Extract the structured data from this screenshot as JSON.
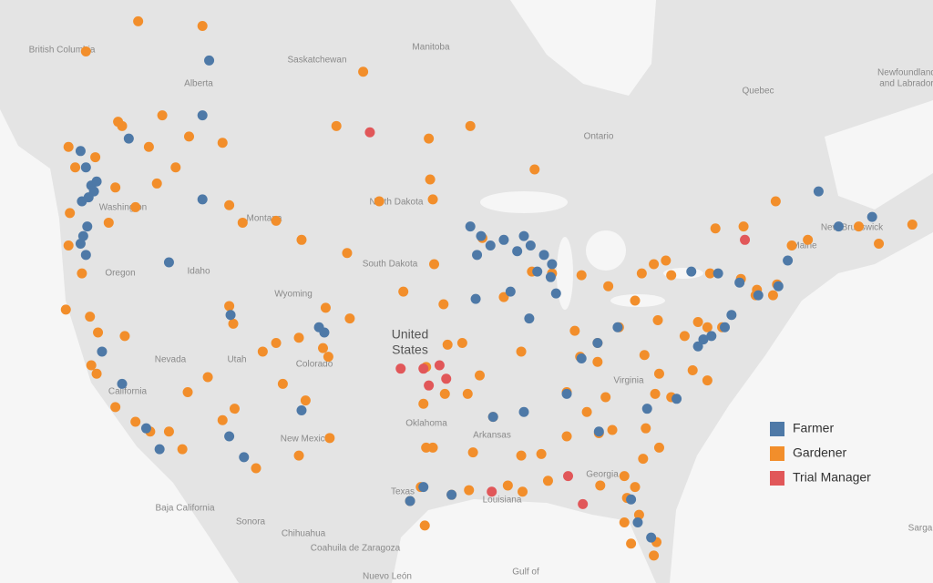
{
  "map": {
    "places": [
      "British Columbia",
      "Alberta",
      "Saskatchewan",
      "Manitoba",
      "Ontario",
      "Quebec",
      "Newfoundland",
      "and Labrador",
      "North Dakota",
      "South Dakota",
      "Montana",
      "Wyoming",
      "Idaho",
      "Washington",
      "Oregon",
      "Nevada",
      "Utah",
      "Colorado",
      "California",
      "New Mexico",
      "Texas",
      "Oklahoma",
      "Arkansas",
      "Louisiana",
      "Georgia",
      "Virginia",
      "Maine",
      "New Brunswick",
      "Baja California",
      "Sonora",
      "Chihuahua",
      "Coahuila de Zaragoza",
      "Nuevo León",
      "Gulf of",
      "Sarga"
    ],
    "country_label": [
      "United",
      "States"
    ],
    "series": [
      {
        "name": "Gardener",
        "color": "#f28e2b",
        "lon": [
          -124,
          -123.5,
          -122,
          -120,
          -118,
          -117,
          -115,
          -116,
          -117.4,
          -119,
          -120.5,
          -121,
          -123.9,
          -124,
          -123,
          -124.2,
          -122.4,
          -121.8,
          -122.3,
          -121.9,
          -120.5,
          -119,
          -117.9,
          -116.5,
          -115.5,
          -119.8,
          -115.1,
          -113.6,
          -111.7,
          -112,
          -109.5,
          -108.5,
          -106.8,
          -105,
          -104.6,
          -103,
          -106.3,
          -108,
          -104.5,
          -106.8,
          -111.6,
          -112.5,
          -110,
          -108.5,
          -111,
          -112,
          -106.6,
          -104.8,
          -103.2,
          -100.8,
          -97,
          -96.8,
          -96.7,
          -99,
          -96,
          -97.3,
          -95.7,
          -94.6,
          -97.5,
          -95.9,
          -97.3,
          -96.8,
          -97.7,
          -98.5,
          -95.4,
          -94.1,
          -97.4,
          -93.8,
          -91.2,
          -90.1,
          -88.2,
          -86.8,
          -88.7,
          -90.2,
          -92.3,
          -94.2,
          -90.2,
          -93.3,
          -91.5,
          -93.1,
          -89.4,
          -87.9,
          -86.2,
          -85.7,
          -83.7,
          -84.5,
          -82.9,
          -81.7,
          -80,
          -79,
          -76.1,
          -73.8,
          -72.7,
          -71.4,
          -71.1,
          -72.6,
          -75.2,
          -77,
          -76.3,
          -77.4,
          -76.3,
          -79.9,
          -80.2,
          -79,
          -80.9,
          -79.9,
          -81.1,
          -83.4,
          -84.4,
          -82.5,
          -81.7,
          -82.3,
          -81.4,
          -82.5,
          -82,
          -80.1,
          -80.3,
          -84.3,
          -86.8,
          -85.3,
          -83.9,
          -84.5,
          -85.8,
          -81,
          -78,
          -70,
          -68.8,
          -65,
          -63.5,
          -61,
          -73.6,
          -75.7,
          -79.4,
          -81.2,
          -80.3,
          -71.2,
          -102,
          -104,
          -97.1,
          -94,
          -89.2,
          -112.5,
          -114,
          -118.8,
          -122.7,
          -120.3
        ],
        "lat": [
          49.5,
          48.5,
          49,
          50.5,
          49.5,
          51,
          50,
          48.5,
          47.7,
          46.5,
          47.5,
          45.7,
          46.2,
          44.5,
          43,
          41,
          40.6,
          39.7,
          37.8,
          37.3,
          35.3,
          34.4,
          33.8,
          33.8,
          32.7,
          39.5,
          36.2,
          37.1,
          40.2,
          41.2,
          38.6,
          39.1,
          39.4,
          38.8,
          38.3,
          40.5,
          35.7,
          36.7,
          33.4,
          32.3,
          35.2,
          34.5,
          31.5,
          45.8,
          45.7,
          46.6,
          44.8,
          41.1,
          44.1,
          46.8,
          47.9,
          46.9,
          43.5,
          42,
          41.3,
          37.7,
          39,
          39.1,
          35.5,
          36.1,
          32.8,
          32.8,
          30.3,
          29.4,
          29.8,
          30.1,
          27.8,
          32.5,
          30.4,
          30,
          30.7,
          33.5,
          32.4,
          32.3,
          34.7,
          36.1,
          38.6,
          37.2,
          41.7,
          44.9,
          43.1,
          43,
          39.8,
          42.9,
          42.3,
          39.1,
          40,
          41.5,
          40.4,
          42.9,
          43,
          42.7,
          41.8,
          41.8,
          42.4,
          42.1,
          40,
          40.3,
          40,
          37.5,
          36.9,
          37.3,
          36.1,
          35.9,
          34,
          32.8,
          32.1,
          33.9,
          33.7,
          31,
          30.3,
          29.6,
          28.5,
          28,
          26.6,
          26.7,
          25.8,
          30.4,
          36.2,
          35,
          35.9,
          38,
          38.3,
          38.4,
          39.5,
          44.5,
          44.8,
          45.5,
          44.6,
          45.6,
          45.5,
          45.4,
          43.7,
          43,
          43.5,
          46.8,
          53,
          50.5,
          49.9,
          50.5,
          48.4,
          49.7,
          55,
          55.2,
          53.9,
          50.7
        ]
      },
      {
        "name": "Farmer",
        "color": "#4e79a7",
        "lon": [
          -122.3,
          -122.1,
          -122.5,
          -121.9,
          -122.7,
          -123,
          -122.6,
          -122.9,
          -123.1,
          -122.7,
          -93.2,
          -92.5,
          -91.5,
          -90.5,
          -89.5,
          -89,
          -88.5,
          -94,
          -93.5,
          -90,
          -88,
          -87.9,
          -91,
          -93.6,
          -89.6,
          -87.6,
          -75,
          -74.5,
          -76,
          -77,
          -76.6,
          -73.9,
          -71,
          -72.5,
          -75.5,
          -77.5,
          -70.3,
          -66.5,
          -64,
          -68,
          -78.6,
          -80.8,
          -84.4,
          -82,
          -81.5,
          -80.5,
          -86.8,
          -84.5,
          -83,
          -85.7,
          -90,
          -92.3,
          -95.4,
          -97.5,
          -98.5,
          -106.6,
          -104.9,
          -105.3,
          -111.9,
          -112,
          -110.9,
          -117.2,
          -118.2,
          -121.5,
          -120,
          -114,
          -113.5,
          -114,
          -123.1,
          -119.5,
          -116.5
        ],
        "lat": [
          47.6,
          47.3,
          47,
          47.8,
          48.5,
          46.8,
          45.5,
          45,
          44.6,
          44,
          45,
          44.5,
          44.8,
          44.2,
          44.5,
          43.1,
          44,
          45.5,
          44,
          45,
          42.8,
          43.5,
          42,
          41.6,
          40.5,
          41.9,
          40,
          40.7,
          39.5,
          38.9,
          39.3,
          42.5,
          42.3,
          41.8,
          43,
          43.1,
          43.7,
          45.5,
          46,
          47.3,
          35.8,
          35.2,
          33.8,
          29.5,
          28,
          27,
          36.1,
          39.1,
          40,
          38.2,
          35,
          34.7,
          29.8,
          30.3,
          29.4,
          35.1,
          39.7,
          40,
          40.7,
          33.5,
          32.2,
          32.7,
          34,
          38.6,
          36.7,
          46.9,
          53.5,
          51,
          49.3,
          49.9,
          43.6
        ]
      },
      {
        "name": "Trial Manager",
        "color": "#e15759",
        "lon": [
          -101.5,
          -99.2,
          -97.5,
          -97.1,
          -96.3,
          -95.8,
          -92.4,
          -86.7,
          -85.6,
          -73.5
        ],
        "lat": [
          50.2,
          37.6,
          37.6,
          36.6,
          37.8,
          37,
          30,
          31,
          29.2,
          44.8
        ]
      }
    ]
  }
}
